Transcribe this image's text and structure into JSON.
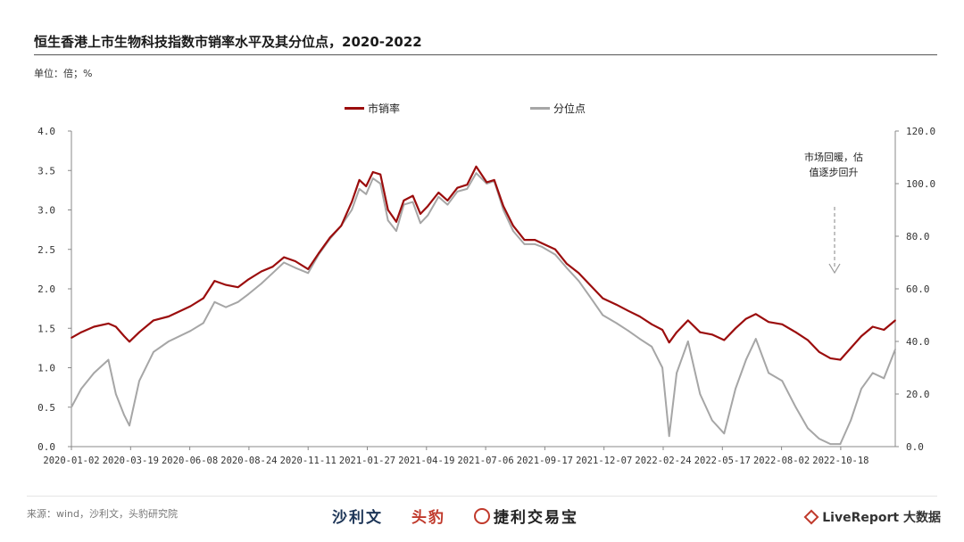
{
  "header": {
    "title": "恒生香港上市生物科技指数市销率水平及其分位点，2020-2022",
    "unit": "单位：倍；%"
  },
  "annotation": {
    "line1": "市场回暖，估",
    "line2": "值逐步回升"
  },
  "footer": {
    "source": "来源：wind，沙利文，头豹研究院",
    "logo_a": "沙利文",
    "logo_b": "头豹",
    "logo_c": "捷利交易宝",
    "logo_d": "LiveReport 大数据"
  },
  "colors": {
    "ps_ratio": "#9b0d0d",
    "percentile": "#a6a6a6",
    "axis": "#999999"
  },
  "chart_data": {
    "type": "line",
    "title": "恒生香港上市生物科技指数市销率水平及其分位点，2020-2022",
    "x_tick_labels": [
      "2020-01-02",
      "2020-03-19",
      "2020-06-08",
      "2020-08-24",
      "2020-11-11",
      "2021-01-27",
      "2021-04-19",
      "2021-07-06",
      "2021-09-17",
      "2021-12-07",
      "2022-02-24",
      "2022-05-17",
      "2022-08-02",
      "2022-10-18"
    ],
    "y_left": {
      "ticks": [
        "0.0",
        "0.5",
        "1.0",
        "1.5",
        "2.0",
        "2.5",
        "3.0",
        "3.5",
        "4.0"
      ],
      "ylim": [
        0,
        4
      ]
    },
    "y_right": {
      "ticks": [
        "0.0",
        "20.0",
        "40.0",
        "60.0",
        "80.0",
        "100.0",
        "120.0"
      ],
      "ylim": [
        0,
        120
      ]
    },
    "legend_position": "top",
    "grid": false,
    "series": [
      {
        "name": "市销率",
        "axis": "left",
        "points": [
          [
            "2020-01-02",
            1.38
          ],
          [
            "2020-01-15",
            1.45
          ],
          [
            "2020-02-01",
            1.52
          ],
          [
            "2020-02-20",
            1.56
          ],
          [
            "2020-03-01",
            1.52
          ],
          [
            "2020-03-12",
            1.4
          ],
          [
            "2020-03-19",
            1.33
          ],
          [
            "2020-04-01",
            1.45
          ],
          [
            "2020-04-20",
            1.6
          ],
          [
            "2020-05-10",
            1.65
          ],
          [
            "2020-06-08",
            1.78
          ],
          [
            "2020-06-25",
            1.88
          ],
          [
            "2020-07-10",
            2.1
          ],
          [
            "2020-07-25",
            2.05
          ],
          [
            "2020-08-10",
            2.02
          ],
          [
            "2020-08-24",
            2.12
          ],
          [
            "2020-09-10",
            2.22
          ],
          [
            "2020-09-25",
            2.28
          ],
          [
            "2020-10-10",
            2.4
          ],
          [
            "2020-10-25",
            2.35
          ],
          [
            "2020-11-11",
            2.25
          ],
          [
            "2020-11-25",
            2.45
          ],
          [
            "2020-12-10",
            2.65
          ],
          [
            "2020-12-25",
            2.8
          ],
          [
            "2021-01-08",
            3.1
          ],
          [
            "2021-01-18",
            3.38
          ],
          [
            "2021-01-27",
            3.3
          ],
          [
            "2021-02-05",
            3.48
          ],
          [
            "2021-02-15",
            3.45
          ],
          [
            "2021-02-25",
            3.0
          ],
          [
            "2021-03-08",
            2.85
          ],
          [
            "2021-03-18",
            3.12
          ],
          [
            "2021-03-30",
            3.18
          ],
          [
            "2021-04-09",
            2.95
          ],
          [
            "2021-04-19",
            3.05
          ],
          [
            "2021-05-03",
            3.22
          ],
          [
            "2021-05-15",
            3.12
          ],
          [
            "2021-05-28",
            3.28
          ],
          [
            "2021-06-10",
            3.32
          ],
          [
            "2021-06-22",
            3.55
          ],
          [
            "2021-07-06",
            3.35
          ],
          [
            "2021-07-16",
            3.38
          ],
          [
            "2021-07-28",
            3.05
          ],
          [
            "2021-08-10",
            2.8
          ],
          [
            "2021-08-25",
            2.62
          ],
          [
            "2021-09-08",
            2.62
          ],
          [
            "2021-09-17",
            2.58
          ],
          [
            "2021-10-05",
            2.5
          ],
          [
            "2021-10-20",
            2.32
          ],
          [
            "2021-11-05",
            2.2
          ],
          [
            "2021-11-20",
            2.05
          ],
          [
            "2021-12-07",
            1.88
          ],
          [
            "2021-12-25",
            1.8
          ],
          [
            "2022-01-10",
            1.72
          ],
          [
            "2022-01-25",
            1.65
          ],
          [
            "2022-02-10",
            1.55
          ],
          [
            "2022-02-24",
            1.48
          ],
          [
            "2022-03-05",
            1.32
          ],
          [
            "2022-03-15",
            1.45
          ],
          [
            "2022-03-30",
            1.6
          ],
          [
            "2022-04-15",
            1.45
          ],
          [
            "2022-05-01",
            1.42
          ],
          [
            "2022-05-17",
            1.35
          ],
          [
            "2022-06-01",
            1.5
          ],
          [
            "2022-06-15",
            1.62
          ],
          [
            "2022-06-28",
            1.68
          ],
          [
            "2022-07-15",
            1.58
          ],
          [
            "2022-08-02",
            1.55
          ],
          [
            "2022-08-20",
            1.45
          ],
          [
            "2022-09-05",
            1.35
          ],
          [
            "2022-09-20",
            1.2
          ],
          [
            "2022-10-05",
            1.12
          ],
          [
            "2022-10-18",
            1.1
          ],
          [
            "2022-11-01",
            1.25
          ],
          [
            "2022-11-15",
            1.4
          ],
          [
            "2022-11-30",
            1.52
          ],
          [
            "2022-12-15",
            1.48
          ],
          [
            "2022-12-30",
            1.6
          ]
        ]
      },
      {
        "name": "分位点",
        "axis": "right",
        "points": [
          [
            "2020-01-02",
            15.0
          ],
          [
            "2020-01-15",
            22.0
          ],
          [
            "2020-02-01",
            28.0
          ],
          [
            "2020-02-20",
            33.0
          ],
          [
            "2020-03-01",
            20.0
          ],
          [
            "2020-03-12",
            12.0
          ],
          [
            "2020-03-19",
            8.0
          ],
          [
            "2020-04-01",
            25.0
          ],
          [
            "2020-04-20",
            36.0
          ],
          [
            "2020-05-10",
            40.0
          ],
          [
            "2020-06-08",
            44.0
          ],
          [
            "2020-06-25",
            47.0
          ],
          [
            "2020-07-10",
            55.0
          ],
          [
            "2020-07-25",
            53.0
          ],
          [
            "2020-08-10",
            55.0
          ],
          [
            "2020-08-24",
            58.0
          ],
          [
            "2020-09-10",
            62.0
          ],
          [
            "2020-09-25",
            66.0
          ],
          [
            "2020-10-10",
            70.0
          ],
          [
            "2020-10-25",
            68.0
          ],
          [
            "2020-11-11",
            66.0
          ],
          [
            "2020-11-25",
            73.0
          ],
          [
            "2020-12-10",
            79.0
          ],
          [
            "2020-12-25",
            84.0
          ],
          [
            "2021-01-08",
            90.0
          ],
          [
            "2021-01-18",
            98.0
          ],
          [
            "2021-01-27",
            96.0
          ],
          [
            "2021-02-05",
            102.0
          ],
          [
            "2021-02-15",
            100.0
          ],
          [
            "2021-02-25",
            86.0
          ],
          [
            "2021-03-08",
            82.0
          ],
          [
            "2021-03-18",
            92.0
          ],
          [
            "2021-03-30",
            93.0
          ],
          [
            "2021-04-09",
            85.0
          ],
          [
            "2021-04-19",
            88.0
          ],
          [
            "2021-05-03",
            95.0
          ],
          [
            "2021-05-15",
            92.0
          ],
          [
            "2021-05-28",
            97.0
          ],
          [
            "2021-06-10",
            98.0
          ],
          [
            "2021-06-22",
            104.0
          ],
          [
            "2021-07-06",
            100.0
          ],
          [
            "2021-07-16",
            101.0
          ],
          [
            "2021-07-28",
            90.0
          ],
          [
            "2021-08-10",
            82.0
          ],
          [
            "2021-08-25",
            77.0
          ],
          [
            "2021-09-08",
            77.0
          ],
          [
            "2021-09-17",
            76.0
          ],
          [
            "2021-10-05",
            73.0
          ],
          [
            "2021-10-20",
            68.0
          ],
          [
            "2021-11-05",
            63.0
          ],
          [
            "2021-11-20",
            57.0
          ],
          [
            "2021-12-07",
            50.0
          ],
          [
            "2021-12-25",
            47.0
          ],
          [
            "2022-01-10",
            44.0
          ],
          [
            "2022-01-25",
            41.0
          ],
          [
            "2022-02-10",
            38.0
          ],
          [
            "2022-02-24",
            30.0
          ],
          [
            "2022-03-05",
            4.0
          ],
          [
            "2022-03-15",
            28.0
          ],
          [
            "2022-03-30",
            40.0
          ],
          [
            "2022-04-15",
            20.0
          ],
          [
            "2022-05-01",
            10.0
          ],
          [
            "2022-05-17",
            5.0
          ],
          [
            "2022-06-01",
            22.0
          ],
          [
            "2022-06-15",
            33.0
          ],
          [
            "2022-06-28",
            41.0
          ],
          [
            "2022-07-15",
            28.0
          ],
          [
            "2022-08-02",
            25.0
          ],
          [
            "2022-08-20",
            15.0
          ],
          [
            "2022-09-05",
            7.0
          ],
          [
            "2022-09-20",
            3.0
          ],
          [
            "2022-10-05",
            1.0
          ],
          [
            "2022-10-18",
            1.0
          ],
          [
            "2022-11-01",
            10.0
          ],
          [
            "2022-11-15",
            22.0
          ],
          [
            "2022-11-30",
            28.0
          ],
          [
            "2022-12-15",
            26.0
          ],
          [
            "2022-12-30",
            37.0
          ]
        ]
      }
    ]
  }
}
